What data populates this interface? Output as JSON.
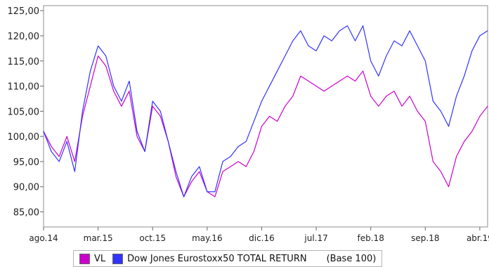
{
  "chart_data": {
    "type": "line",
    "title": "",
    "xlabel": "",
    "ylabel": "",
    "ylim": [
      82,
      126
    ],
    "y_ticks": [
      "85,00",
      "90,00",
      "95,00",
      "100,00",
      "105,00",
      "110,00",
      "115,00",
      "120,00",
      "125,00"
    ],
    "x_ticks": [
      "ago.14",
      "mar.15",
      "oct.15",
      "may.16",
      "dic.16",
      "jul.17",
      "feb.18",
      "sep.18",
      "abr.19"
    ],
    "grid": false,
    "legend": {
      "placement": "bottom",
      "note": "(Base 100)"
    },
    "x": [
      "ago.14",
      "sep.14",
      "oct.14",
      "nov.14",
      "dic.14",
      "ene.15",
      "feb.15",
      "mar.15",
      "abr.15",
      "may.15",
      "jun.15",
      "jul.15",
      "ago.15",
      "sep.15",
      "oct.15",
      "nov.15",
      "dic.15",
      "ene.16",
      "feb.16",
      "mar.16",
      "abr.16",
      "may.16",
      "jun.16",
      "jul.16",
      "ago.16",
      "sep.16",
      "oct.16",
      "nov.16",
      "dic.16",
      "ene.17",
      "feb.17",
      "mar.17",
      "abr.17",
      "may.17",
      "jun.17",
      "jul.17",
      "ago.17",
      "sep.17",
      "oct.17",
      "nov.17",
      "dic.17",
      "ene.18",
      "feb.18",
      "mar.18",
      "abr.18",
      "may.18",
      "jun.18",
      "jul.18",
      "ago.18",
      "sep.18",
      "oct.18",
      "nov.18",
      "dic.18",
      "ene.19",
      "feb.19",
      "mar.19",
      "abr.19",
      "may.19"
    ],
    "series": [
      {
        "name": "VL",
        "color": "#cc00cc",
        "values": [
          101,
          98,
          96,
          100,
          95,
          104,
          110,
          116,
          114,
          109,
          106,
          109,
          100,
          97,
          106,
          104,
          99,
          92,
          88,
          91,
          93,
          89,
          88,
          93,
          94,
          95,
          94,
          97,
          102,
          104,
          103,
          106,
          108,
          112,
          111,
          110,
          109,
          110,
          111,
          112,
          111,
          113,
          108,
          106,
          108,
          109,
          106,
          108,
          105,
          103,
          95,
          93,
          90,
          96,
          99,
          101,
          104,
          106
        ]
      },
      {
        "name": "Dow Jones Eurostoxx50 TOTAL RETURN",
        "color": "#3333ff",
        "values": [
          101,
          97,
          95,
          99,
          93,
          105,
          113,
          118,
          116,
          110,
          107,
          111,
          101,
          97,
          107,
          105,
          99,
          93,
          88,
          92,
          94,
          89,
          89,
          95,
          96,
          98,
          99,
          103,
          107,
          110,
          113,
          116,
          119,
          121,
          118,
          117,
          120,
          119,
          121,
          122,
          119,
          122,
          115,
          112,
          116,
          119,
          118,
          121,
          118,
          115,
          107,
          105,
          102,
          108,
          112,
          117,
          120,
          121
        ]
      }
    ]
  }
}
